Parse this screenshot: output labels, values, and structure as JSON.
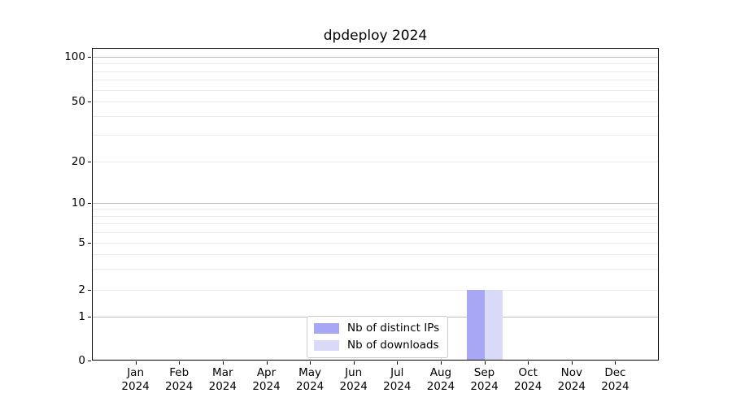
{
  "chart_data": {
    "type": "bar",
    "title": "dpdeploy 2024",
    "categories": [
      {
        "month": "Jan",
        "year": "2024"
      },
      {
        "month": "Feb",
        "year": "2024"
      },
      {
        "month": "Mar",
        "year": "2024"
      },
      {
        "month": "Apr",
        "year": "2024"
      },
      {
        "month": "May",
        "year": "2024"
      },
      {
        "month": "Jun",
        "year": "2024"
      },
      {
        "month": "Jul",
        "year": "2024"
      },
      {
        "month": "Aug",
        "year": "2024"
      },
      {
        "month": "Sep",
        "year": "2024"
      },
      {
        "month": "Oct",
        "year": "2024"
      },
      {
        "month": "Nov",
        "year": "2024"
      },
      {
        "month": "Dec",
        "year": "2024"
      }
    ],
    "series": [
      {
        "name": "Nb of distinct IPs",
        "color": "#a7a7f5",
        "values": [
          0,
          0,
          0,
          0,
          0,
          0,
          0,
          0,
          2,
          0,
          0,
          0
        ]
      },
      {
        "name": "Nb of downloads",
        "color": "#d9d9f8",
        "values": [
          0,
          0,
          0,
          0,
          0,
          0,
          0,
          0,
          2,
          0,
          0,
          0
        ]
      }
    ],
    "y_axis": {
      "scale": "symlog",
      "tick_values": [
        0,
        1,
        2,
        5,
        10,
        20,
        50,
        100
      ],
      "tick_labels": [
        "0",
        "1",
        "2",
        "5",
        "10",
        "20",
        "50",
        "100"
      ],
      "range": [
        0,
        110
      ],
      "grid": true
    },
    "legend": {
      "position": "inside-bottom-center",
      "entries": [
        "Nb of distinct IPs",
        "Nb of downloads"
      ]
    }
  }
}
